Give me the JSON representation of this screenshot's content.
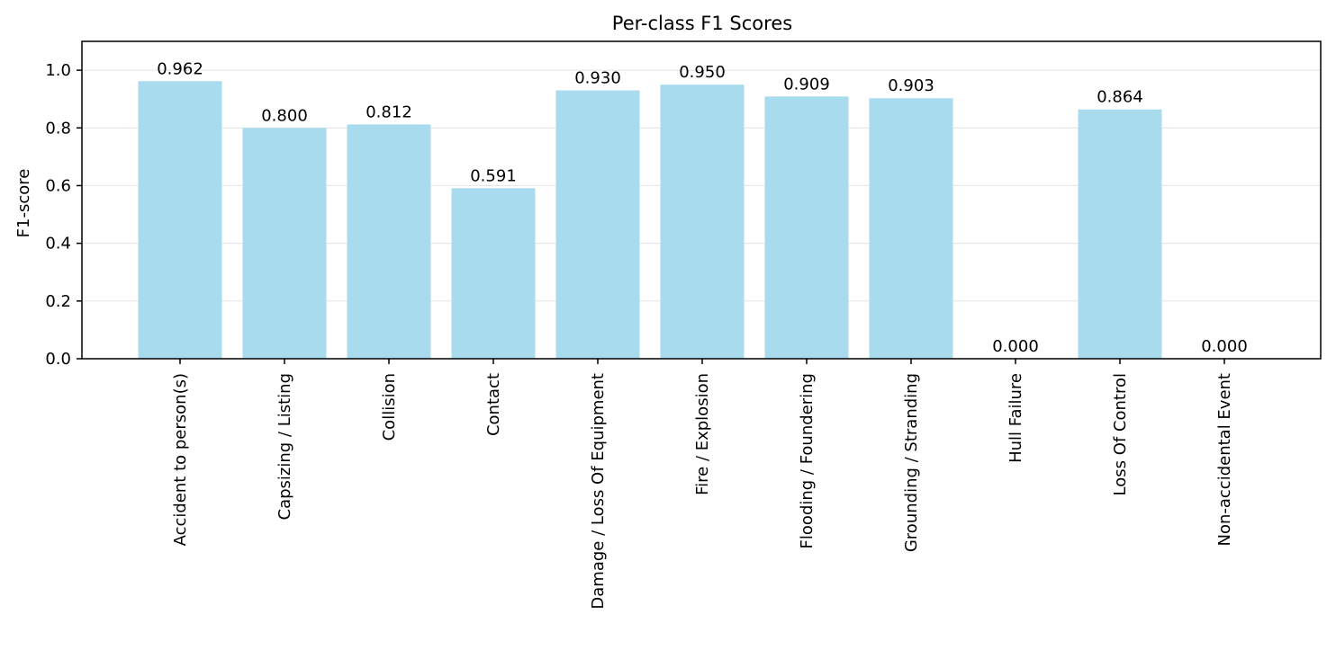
{
  "chart_data": {
    "type": "bar",
    "title": "Per-class F1 Scores",
    "xlabel": "",
    "ylabel": "F1-score",
    "ylim": [
      0,
      1.1
    ],
    "yticks": [
      "0.0",
      "0.2",
      "0.4",
      "0.6",
      "0.8",
      "1.0"
    ],
    "grid": "y-axis only",
    "bar_color": "#a8dbed",
    "categories": [
      "Accident to person(s)",
      "Capsizing / Listing",
      "Collision",
      "Contact",
      "Damage / Loss Of Equipment",
      "Fire / Explosion",
      "Flooding / Foundering",
      "Grounding / Stranding",
      "Hull Failure",
      "Loss Of Control",
      "Non-accidental Event"
    ],
    "values": [
      0.962,
      0.8,
      0.812,
      0.591,
      0.93,
      0.95,
      0.909,
      0.903,
      0.0,
      0.864,
      0.0
    ],
    "value_labels": [
      "0.962",
      "0.800",
      "0.812",
      "0.591",
      "0.930",
      "0.950",
      "0.909",
      "0.903",
      "0.000",
      "0.864",
      "0.000"
    ]
  }
}
